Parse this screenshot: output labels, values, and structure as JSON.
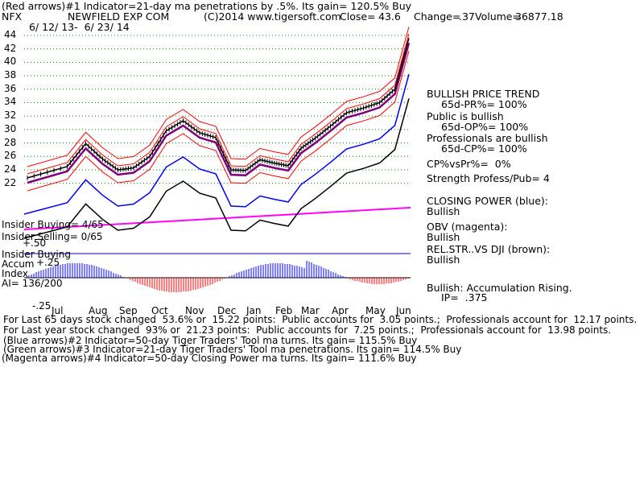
{
  "header": {
    "line1": "(Red arrows)#1 Indicator=21-day ma penetrations by .5%. Its gain= 120.5% Buy",
    "symbol": "NFX",
    "company": "NEWFIELD EXP COM",
    "copyright": "(C)2014 www.tigersoft.com",
    "close_label": "Close=",
    "close_value": "43.6",
    "change_label": "Change=",
    "change_value": ".37",
    "volume_label": "Volume=",
    "volume_value": "36877.18",
    "date_range": "6/ 12/ 13-  6/ 23/ 14"
  },
  "right_panel": {
    "trend_title": "BULLISH PRICE TREND",
    "pr": "65d-PR%= 100%",
    "public_title": "Public is bullish",
    "op": "65d-OP%= 100%",
    "pro_title": "Professionals are bullish",
    "cp": "65d-CP%= 100%",
    "cpvspr": "CP%vsPr%=  0%",
    "strength": "Strength Profess/Pub= 4",
    "closing_power": "CLOSING POWER (blue):",
    "closing_power_value": "Bullish",
    "obv": "OBV (magenta):",
    "obv_value": "Bullish",
    "relstr": "REL.STR..VS DJI (brown):",
    "relstr_value": "Bullish",
    "accum": "Bullish: Accumulation Rising.",
    "ip": "IP=  .375"
  },
  "left_labels": {
    "insider_buying": "Insider Buying= 4/65",
    "insider_selling": "Insider Selling= 0/65",
    "plus50": "+.50",
    "insider_buying2": "Insider Buying",
    "accum": "Accum",
    "plus25": "+.25",
    "index": "Index",
    "ai": "AI= 136/200",
    "minus25": "-.25"
  },
  "footer": {
    "line1": "For Last 65 days stock changed  53.6% or  15.22 points:  Public accounts for  3.05 points.;  Professionals account for  12.17 points.",
    "line2": "For Last year stock changed  93% or  21.23 points:  Public accounts for  7.25 points.;  Professionals account for  13.98 points.",
    "line3": "(Blue arrows)#2 Indicator=50-day Tiger Traders' Tool ma turns. Its gain= 115.5% Buy",
    "line4": "(Green arrows)#3 Indicator=21-day Tiger Traders' Tool ma penetrations. Its gain= 114.5% Buy",
    "line5": "(Magenta arrows)#4 Indicator=50-day Closing Power ma turns. Its gain= 111.6% Buy"
  },
  "colors": {
    "price": "#000000",
    "band": "#ff0000",
    "ma": "#800080",
    "closing_power": "#0000ff",
    "obv": "#ff00ff",
    "relstr": "#000000",
    "accum_pos": "#0000ff",
    "accum_neg": "#ff0000",
    "grid": "#008000"
  },
  "chart_data": {
    "type": "line",
    "ylim": [
      21,
      44
    ],
    "y_ticks": [
      "44",
      "42",
      "40",
      "38",
      "36",
      "34",
      "32",
      "30",
      "28",
      "26",
      "24",
      "22"
    ],
    "x_ticks": [
      "Jul",
      "Aug",
      "Sep",
      "Oct",
      "Nov",
      "Dec",
      "Jan",
      "Feb",
      "Mar",
      "Apr",
      "May",
      "Jun"
    ],
    "series": [
      {
        "name": "Close",
        "x": [
          "Jun",
          "Jul",
          "Jul",
          "Aug",
          "Aug",
          "Sep",
          "Sep",
          "Oct",
          "Oct",
          "Nov",
          "Nov",
          "Dec",
          "Dec",
          "Jan",
          "Jan",
          "Feb",
          "Feb",
          "Mar",
          "Mar",
          "Apr",
          "Apr",
          "May",
          "May",
          "Jun"
        ],
        "values": [
          22.8,
          24.5,
          27.9,
          25.6,
          24.0,
          24.3,
          26.0,
          29.8,
          31.3,
          29.5,
          28.8,
          24.0,
          23.9,
          25.5,
          25.0,
          24.6,
          27.2,
          28.7,
          30.5,
          32.5,
          33.2,
          34.0,
          36.0,
          43.6
        ]
      }
    ]
  }
}
